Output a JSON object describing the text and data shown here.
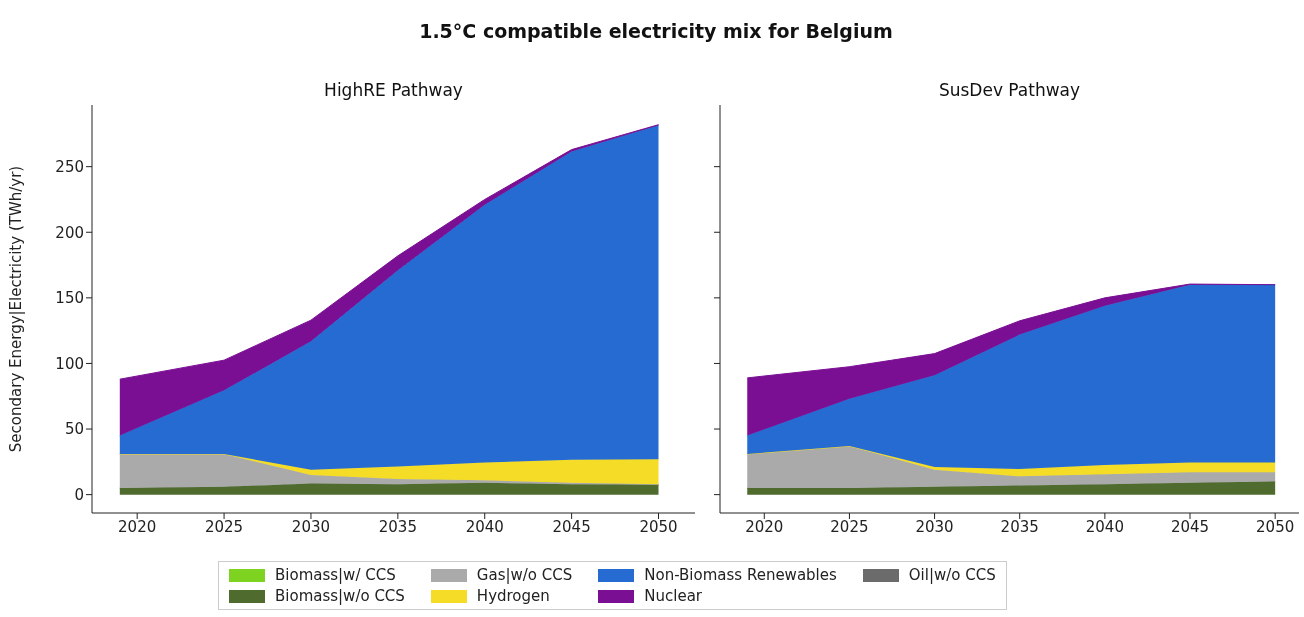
{
  "chart_data": [
    {
      "type": "area",
      "title": "1.5°C compatible electricity mix for Belgium",
      "subtitle": "HighRE Pathway",
      "ylabel": "Secondary Energy|Electricity (TWh/yr)",
      "stacked": true,
      "legend": "bottom",
      "grid": false,
      "x": [
        2019,
        2025,
        2030,
        2035,
        2040,
        2045,
        2050
      ],
      "xlim": [
        2017.4,
        2052.1
      ],
      "xticks": [
        2020,
        2025,
        2030,
        2035,
        2040,
        2045,
        2050
      ],
      "ylim": [
        -14,
        297
      ],
      "yticks": [
        0,
        50,
        100,
        150,
        200,
        250
      ],
      "series": [
        {
          "name": "Biomass|w/ CCS",
          "color": "#7ed321",
          "values": [
            null,
            null,
            null,
            null,
            null,
            null,
            null
          ]
        },
        {
          "name": "Biomass|w/o CCS",
          "color": "#4f6b2e",
          "values": [
            5,
            6,
            8.5,
            8,
            9,
            8,
            7.5
          ]
        },
        {
          "name": "Gas|w/o CCS",
          "color": "#aaaaaa",
          "values": [
            26,
            25,
            6.5,
            4,
            2,
            1,
            0.5
          ]
        },
        {
          "name": "Hydrogen",
          "color": "#f5dc26",
          "values": [
            0,
            0,
            4,
            9.5,
            13.5,
            17.5,
            19
          ]
        },
        {
          "name": "Non-Biomass Renewables",
          "color": "#256bd1",
          "values": [
            14,
            48.5,
            98,
            149.5,
            196.5,
            235,
            254.5
          ]
        },
        {
          "name": "Nuclear",
          "color": "#7b0f94",
          "values": [
            43,
            23,
            16,
            11,
            4,
            1.5,
            0.5
          ]
        },
        {
          "name": "Oil|w/o CCS",
          "color": "#6b6b6b",
          "values": [
            null,
            null,
            null,
            null,
            null,
            null,
            null
          ]
        }
      ]
    },
    {
      "type": "area",
      "subtitle": "SusDev Pathway",
      "stacked": true,
      "grid": false,
      "tick_labels": "x",
      "x": [
        2019,
        2025,
        2030,
        2035,
        2040,
        2045,
        2050
      ],
      "xlim": [
        2017.4,
        2051.4
      ],
      "xticks": [
        2020,
        2025,
        2030,
        2035,
        2040,
        2045,
        2050
      ],
      "ylim": [
        -14,
        297
      ],
      "yticks": [
        0,
        50,
        100,
        150,
        200,
        250
      ],
      "series": [
        {
          "color": "#4f6b2e",
          "values": [
            5,
            5,
            6,
            7,
            8,
            9,
            10
          ]
        },
        {
          "color": "#aaaaaa",
          "values": [
            26,
            32,
            13,
            7,
            7.5,
            8,
            7
          ]
        },
        {
          "color": "#f5dc26",
          "values": [
            0,
            0,
            2,
            5.5,
            7,
            7.5,
            7.5
          ]
        },
        {
          "color": "#256bd1",
          "values": [
            14,
            36,
            70,
            102.5,
            121.5,
            135.5,
            135.5
          ]
        },
        {
          "color": "#7b0f94",
          "values": [
            44,
            24.5,
            16.5,
            10.5,
            6,
            0.5,
            0
          ]
        }
      ]
    }
  ]
}
